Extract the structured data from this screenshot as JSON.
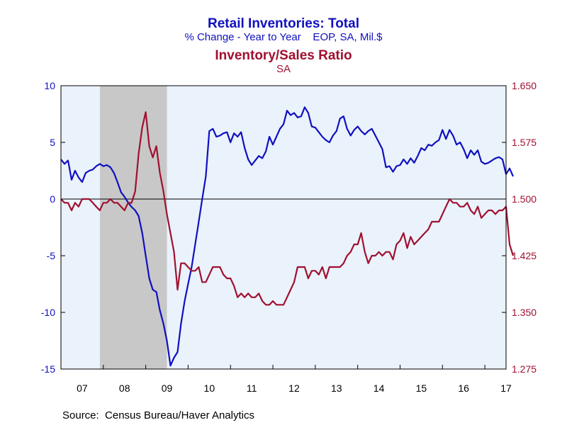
{
  "chart_data": {
    "type": "line",
    "title": "Retail Inventories: Total",
    "subtitle": "% Change - Year to Year    EOP, SA, Mil.$",
    "title2": "Inventory/Sales Ratio",
    "subtitle2": "SA",
    "source": "Source:  Census Bureau/Haver Analytics",
    "x_range": [
      2007.0,
      2017.5
    ],
    "x_tick_labels": [
      "07",
      "08",
      "09",
      "10",
      "11",
      "12",
      "13",
      "14",
      "15",
      "16",
      "17"
    ],
    "y_left": {
      "range": [
        -15,
        10
      ],
      "ticks": [
        "10",
        "5",
        "0",
        "-5",
        "-10",
        "-15"
      ],
      "tick_values": [
        10,
        5,
        0,
        -5,
        -10,
        -15
      ]
    },
    "y_right": {
      "range": [
        1.275,
        1.65
      ],
      "ticks": [
        "1.650",
        "1.575",
        "1.500",
        "1.425",
        "1.350",
        "1.275"
      ],
      "tick_values": [
        1.65,
        1.575,
        1.5,
        1.425,
        1.35,
        1.275
      ]
    },
    "recession_shade": [
      2007.92,
      2009.5
    ],
    "zero_line": 0,
    "grid": false,
    "colors": {
      "background": "#ffffff",
      "plot_bg": "#eaf2fb",
      "shade": "#c8c8c8",
      "left_series": "#1010c0",
      "right_series": "#a01030",
      "axis": "#000000"
    },
    "series": [
      {
        "axis": "left",
        "color": "#1010c0",
        "x": [
          2007.0,
          2007.083,
          2007.167,
          2007.25,
          2007.333,
          2007.417,
          2007.5,
          2007.583,
          2007.667,
          2007.75,
          2007.833,
          2007.917,
          2008.0,
          2008.083,
          2008.167,
          2008.25,
          2008.333,
          2008.417,
          2008.5,
          2008.583,
          2008.667,
          2008.75,
          2008.833,
          2008.917,
          2009.0,
          2009.083,
          2009.167,
          2009.25,
          2009.333,
          2009.417,
          2009.5,
          2009.583,
          2009.667,
          2009.75,
          2009.833,
          2009.917,
          2010.0,
          2010.083,
          2010.167,
          2010.25,
          2010.333,
          2010.417,
          2010.5,
          2010.583,
          2010.667,
          2010.75,
          2010.833,
          2010.917,
          2011.0,
          2011.083,
          2011.167,
          2011.25,
          2011.333,
          2011.417,
          2011.5,
          2011.583,
          2011.667,
          2011.75,
          2011.833,
          2011.917,
          2012.0,
          2012.083,
          2012.167,
          2012.25,
          2012.333,
          2012.417,
          2012.5,
          2012.583,
          2012.667,
          2012.75,
          2012.833,
          2012.917,
          2013.0,
          2013.083,
          2013.167,
          2013.25,
          2013.333,
          2013.417,
          2013.5,
          2013.583,
          2013.667,
          2013.75,
          2013.833,
          2013.917,
          2014.0,
          2014.083,
          2014.167,
          2014.25,
          2014.333,
          2014.417,
          2014.5,
          2014.583,
          2014.667,
          2014.75,
          2014.833,
          2014.917,
          2015.0,
          2015.083,
          2015.167,
          2015.25,
          2015.333,
          2015.417,
          2015.5,
          2015.583,
          2015.667,
          2015.75,
          2015.833,
          2015.917,
          2016.0,
          2016.083,
          2016.167,
          2016.25,
          2016.333,
          2016.417,
          2016.5,
          2016.583,
          2016.667,
          2016.75,
          2016.833,
          2016.917,
          2017.0,
          2017.083,
          2017.167,
          2017.25,
          2017.333,
          2017.417
        ],
        "values": [
          3.5,
          3.1,
          3.4,
          1.7,
          2.5,
          1.9,
          1.5,
          2.3,
          2.5,
          2.6,
          2.9,
          3.1,
          2.9,
          3.0,
          2.8,
          2.3,
          1.5,
          0.6,
          0.2,
          -0.3,
          -0.7,
          -1.0,
          -1.5,
          -3.0,
          -5.0,
          -7.0,
          -8.0,
          -8.2,
          -9.8,
          -11.0,
          -12.5,
          -14.7,
          -14.0,
          -13.5,
          -11.0,
          -9.0,
          -7.5,
          -6.0,
          -4.0,
          -2.0,
          0.0,
          2.0,
          6.0,
          6.2,
          5.5,
          5.6,
          5.8,
          5.9,
          5.0,
          5.8,
          5.5,
          5.9,
          4.5,
          3.5,
          3.0,
          3.4,
          3.8,
          3.6,
          4.2,
          5.5,
          4.8,
          5.5,
          6.2,
          6.6,
          7.8,
          7.4,
          7.6,
          7.2,
          7.3,
          8.1,
          7.6,
          6.4,
          6.3,
          5.9,
          5.5,
          5.2,
          5.0,
          5.6,
          6.0,
          7.1,
          7.3,
          6.2,
          5.6,
          6.1,
          6.4,
          6.0,
          5.7,
          6.0,
          6.2,
          5.6,
          5.0,
          4.4,
          2.8,
          2.9,
          2.4,
          2.9,
          3.0,
          3.5,
          3.1,
          3.6,
          3.2,
          3.8,
          4.5,
          4.3,
          4.8,
          4.7,
          5.0,
          5.2,
          6.1,
          5.3,
          6.1,
          5.6,
          4.8,
          5.0,
          4.4,
          3.6,
          4.3,
          3.9,
          4.3,
          3.3,
          3.1,
          3.2,
          3.4,
          3.6,
          3.7,
          3.5
        ],
        "tail_x": [
          2017.5,
          2017.583,
          2017.667
        ],
        "tail_values": [
          2.2,
          2.7,
          2.0
        ]
      },
      {
        "axis": "right",
        "color": "#a01030",
        "x": [
          2007.0,
          2007.083,
          2007.167,
          2007.25,
          2007.333,
          2007.417,
          2007.5,
          2007.583,
          2007.667,
          2007.75,
          2007.833,
          2007.917,
          2008.0,
          2008.083,
          2008.167,
          2008.25,
          2008.333,
          2008.417,
          2008.5,
          2008.583,
          2008.667,
          2008.75,
          2008.833,
          2008.917,
          2009.0,
          2009.083,
          2009.167,
          2009.25,
          2009.333,
          2009.417,
          2009.5,
          2009.583,
          2009.667,
          2009.75,
          2009.833,
          2009.917,
          2010.0,
          2010.083,
          2010.167,
          2010.25,
          2010.333,
          2010.417,
          2010.5,
          2010.583,
          2010.667,
          2010.75,
          2010.833,
          2010.917,
          2011.0,
          2011.083,
          2011.167,
          2011.25,
          2011.333,
          2011.417,
          2011.5,
          2011.583,
          2011.667,
          2011.75,
          2011.833,
          2011.917,
          2012.0,
          2012.083,
          2012.167,
          2012.25,
          2012.333,
          2012.417,
          2012.5,
          2012.583,
          2012.667,
          2012.75,
          2012.833,
          2012.917,
          2013.0,
          2013.083,
          2013.167,
          2013.25,
          2013.333,
          2013.417,
          2013.5,
          2013.583,
          2013.667,
          2013.75,
          2013.833,
          2013.917,
          2014.0,
          2014.083,
          2014.167,
          2014.25,
          2014.333,
          2014.417,
          2014.5,
          2014.583,
          2014.667,
          2014.75,
          2014.833,
          2014.917,
          2015.0,
          2015.083,
          2015.167,
          2015.25,
          2015.333,
          2015.417,
          2015.5,
          2015.583,
          2015.667,
          2015.75,
          2015.833,
          2015.917,
          2016.0,
          2016.083,
          2016.167,
          2016.25,
          2016.333,
          2016.417,
          2016.5,
          2016.583,
          2016.667,
          2016.75,
          2016.833,
          2016.917,
          2017.0,
          2017.083,
          2017.167,
          2017.25,
          2017.333,
          2017.417
        ],
        "values": [
          1.5,
          1.495,
          1.495,
          1.485,
          1.495,
          1.49,
          1.5,
          1.5,
          1.5,
          1.495,
          1.49,
          1.485,
          1.495,
          1.495,
          1.5,
          1.495,
          1.495,
          1.49,
          1.485,
          1.495,
          1.495,
          1.51,
          1.56,
          1.595,
          1.615,
          1.57,
          1.555,
          1.57,
          1.535,
          1.51,
          1.48,
          1.455,
          1.43,
          1.38,
          1.415,
          1.415,
          1.41,
          1.405,
          1.405,
          1.41,
          1.39,
          1.39,
          1.4,
          1.41,
          1.41,
          1.41,
          1.4,
          1.395,
          1.395,
          1.385,
          1.37,
          1.375,
          1.37,
          1.375,
          1.37,
          1.37,
          1.375,
          1.365,
          1.36,
          1.36,
          1.365,
          1.36,
          1.36,
          1.36,
          1.37,
          1.38,
          1.39,
          1.41,
          1.41,
          1.41,
          1.395,
          1.405,
          1.405,
          1.4,
          1.41,
          1.395,
          1.41,
          1.41,
          1.41,
          1.41,
          1.415,
          1.425,
          1.43,
          1.44,
          1.44,
          1.455,
          1.43,
          1.415,
          1.425,
          1.425,
          1.43,
          1.425,
          1.43,
          1.43,
          1.42,
          1.44,
          1.445,
          1.455,
          1.435,
          1.45,
          1.44,
          1.445,
          1.45,
          1.455,
          1.46,
          1.47,
          1.47,
          1.47,
          1.48,
          1.49,
          1.5,
          1.495,
          1.495,
          1.49,
          1.49,
          1.495,
          1.485,
          1.48,
          1.49,
          1.475,
          1.48,
          1.485,
          1.485,
          1.48,
          1.485,
          1.485
        ],
        "tail_x": [
          2017.5,
          2017.583,
          2017.667
        ],
        "tail_values": [
          1.49,
          1.44,
          1.425
        ]
      }
    ]
  }
}
